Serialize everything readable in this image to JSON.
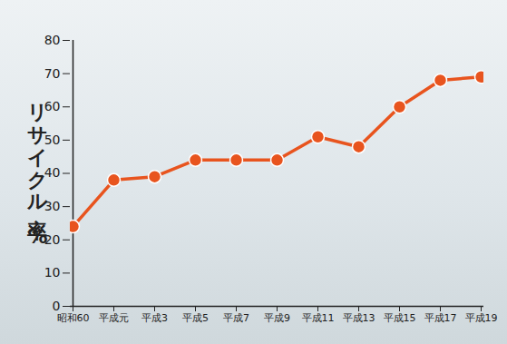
{
  "chart_data": {
    "type": "line",
    "y_label": "リサイクル率 %",
    "categories": [
      "昭和60",
      "平成元",
      "平成3",
      "平成5",
      "平成7",
      "平成9",
      "平成11",
      "平成13",
      "平成15",
      "平成17",
      "平成19"
    ],
    "values": [
      24,
      38,
      39,
      44,
      44,
      44,
      51,
      48,
      60,
      68,
      69
    ],
    "color": "#e8541e",
    "marker": "circle",
    "ylim": [
      0,
      80
    ],
    "yticks": [
      0,
      10,
      20,
      30,
      40,
      50,
      60,
      70,
      80
    ],
    "grid": false
  }
}
